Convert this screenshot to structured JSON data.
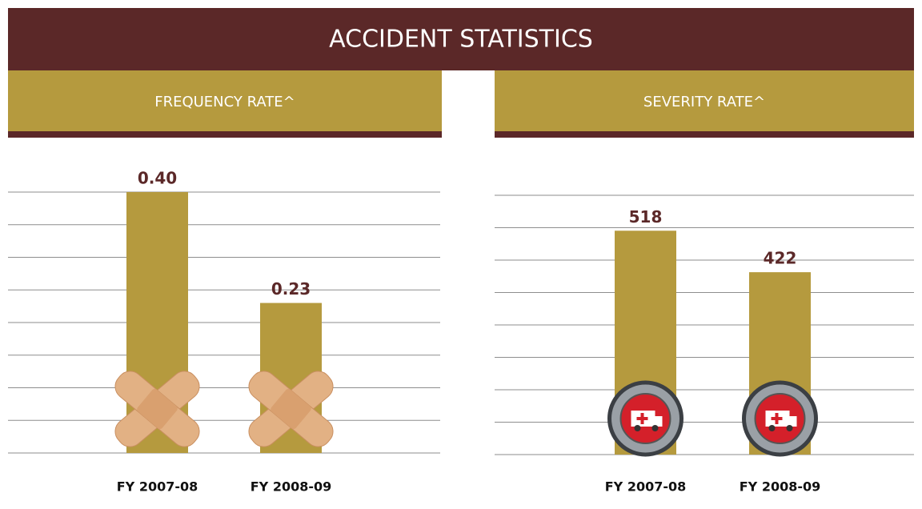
{
  "header": {
    "title": "ACCIDENT STATISTICS"
  },
  "chart_data": [
    {
      "type": "bar",
      "title": "FREQUENCY RATE^",
      "categories": [
        "FY 2007-08",
        "FY 2008-09"
      ],
      "values": [
        0.4,
        0.23
      ],
      "value_labels": [
        "0.40",
        "0.23"
      ],
      "color": "#b59a3e",
      "ylim": [
        0,
        0.4
      ],
      "yticks": [
        0,
        0.05,
        0.1,
        0.15,
        0.2,
        0.25,
        0.3,
        0.35,
        0.4
      ],
      "grid": true
    },
    {
      "type": "bar",
      "title": "SEVERITY RATE^",
      "categories": [
        "FY 2007-08",
        "FY 2008-09"
      ],
      "values": [
        518,
        422
      ],
      "color": "#b59a3e",
      "ylim": [
        0,
        600
      ],
      "yticks": [
        0,
        75,
        150,
        225,
        300,
        375,
        450,
        525,
        600
      ],
      "grid": true
    }
  ]
}
